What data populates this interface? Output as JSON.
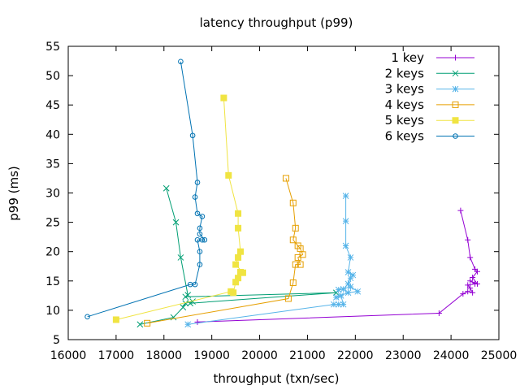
{
  "chart_data": {
    "type": "line",
    "title": "latency throughput (p99)",
    "xlabel": "throughput (txn/sec)",
    "ylabel": "p99 (ms)",
    "xlim": [
      16000,
      25000
    ],
    "ylim": [
      5,
      55
    ],
    "xticks": [
      16000,
      17000,
      18000,
      19000,
      20000,
      21000,
      22000,
      23000,
      24000,
      25000
    ],
    "yticks": [
      5,
      10,
      15,
      20,
      25,
      30,
      35,
      40,
      45,
      50,
      55
    ],
    "grid": false,
    "legend_position": "top-right",
    "series": [
      {
        "name": "1 key",
        "color": "#9400d3",
        "marker": "plus",
        "points": [
          [
            18700,
            8.0
          ],
          [
            23750,
            9.5
          ],
          [
            24250,
            12.8
          ],
          [
            24350,
            13.2
          ],
          [
            24450,
            13.0
          ],
          [
            24400,
            13.8
          ],
          [
            24350,
            14.3
          ],
          [
            24500,
            14.5
          ],
          [
            24400,
            15.0
          ],
          [
            24550,
            14.5
          ],
          [
            24450,
            15.6
          ],
          [
            24550,
            16.6
          ],
          [
            24500,
            17.0
          ],
          [
            24400,
            19.0
          ],
          [
            24350,
            22.0
          ],
          [
            24200,
            27.0
          ]
        ]
      },
      {
        "name": "2 keys",
        "color": "#009e73",
        "marker": "x",
        "points": [
          [
            17500,
            7.6
          ],
          [
            18200,
            8.8
          ],
          [
            18400,
            10.5
          ],
          [
            18450,
            11.2
          ],
          [
            18600,
            11.5
          ],
          [
            18550,
            11.2
          ],
          [
            21600,
            13.0
          ],
          [
            18450,
            12.3
          ],
          [
            18500,
            12.6
          ],
          [
            18350,
            19.0
          ],
          [
            18250,
            25.0
          ],
          [
            18050,
            30.8
          ]
        ]
      },
      {
        "name": "3 keys",
        "color": "#56b4e9",
        "marker": "star",
        "points": [
          [
            18500,
            7.6
          ],
          [
            21550,
            11.0
          ],
          [
            21650,
            11.0
          ],
          [
            21750,
            11.0
          ],
          [
            21700,
            12.5
          ],
          [
            21600,
            12.2
          ],
          [
            21850,
            13.0
          ],
          [
            22050,
            13.2
          ],
          [
            21900,
            14.0
          ],
          [
            21650,
            13.5
          ],
          [
            21750,
            13.6
          ],
          [
            21850,
            14.5
          ],
          [
            21900,
            15.5
          ],
          [
            21950,
            16.0
          ],
          [
            21850,
            16.5
          ],
          [
            21900,
            19.0
          ],
          [
            21800,
            21.0
          ],
          [
            21800,
            25.2
          ],
          [
            21800,
            29.5
          ]
        ]
      },
      {
        "name": "4 keys",
        "color": "#e69f00",
        "marker": "square",
        "points": [
          [
            17650,
            7.8
          ],
          [
            20600,
            12.0
          ],
          [
            20700,
            14.7
          ],
          [
            20750,
            17.8
          ],
          [
            20850,
            17.8
          ],
          [
            20800,
            19.0
          ],
          [
            20900,
            19.5
          ],
          [
            20850,
            20.5
          ],
          [
            20800,
            21.0
          ],
          [
            20700,
            22.0
          ],
          [
            20750,
            24.0
          ],
          [
            20700,
            28.3
          ],
          [
            20550,
            32.5
          ]
        ]
      },
      {
        "name": "5 keys",
        "color": "#f0e442",
        "marker": "filled-square",
        "points": [
          [
            17000,
            8.4
          ],
          [
            19400,
            13.2
          ],
          [
            19450,
            13.0
          ],
          [
            19500,
            14.8
          ],
          [
            19550,
            15.5
          ],
          [
            19600,
            16.5
          ],
          [
            19650,
            16.4
          ],
          [
            19500,
            17.8
          ],
          [
            19550,
            19.0
          ],
          [
            19600,
            20.0
          ],
          [
            19550,
            24.0
          ],
          [
            19550,
            26.5
          ],
          [
            19350,
            33.0
          ],
          [
            19250,
            46.2
          ]
        ]
      },
      {
        "name": "6 keys",
        "color": "#0072b2",
        "marker": "circle",
        "points": [
          [
            16400,
            8.9
          ],
          [
            18550,
            14.4
          ],
          [
            18650,
            14.4
          ],
          [
            18750,
            17.8
          ],
          [
            18750,
            20.0
          ],
          [
            18700,
            22.0
          ],
          [
            18800,
            22.0
          ],
          [
            18850,
            22.0
          ],
          [
            18750,
            23.0
          ],
          [
            18750,
            24.0
          ],
          [
            18800,
            26.0
          ],
          [
            18700,
            26.5
          ],
          [
            18650,
            29.3
          ],
          [
            18700,
            31.8
          ],
          [
            18600,
            39.8
          ],
          [
            18350,
            52.4
          ]
        ]
      }
    ]
  }
}
